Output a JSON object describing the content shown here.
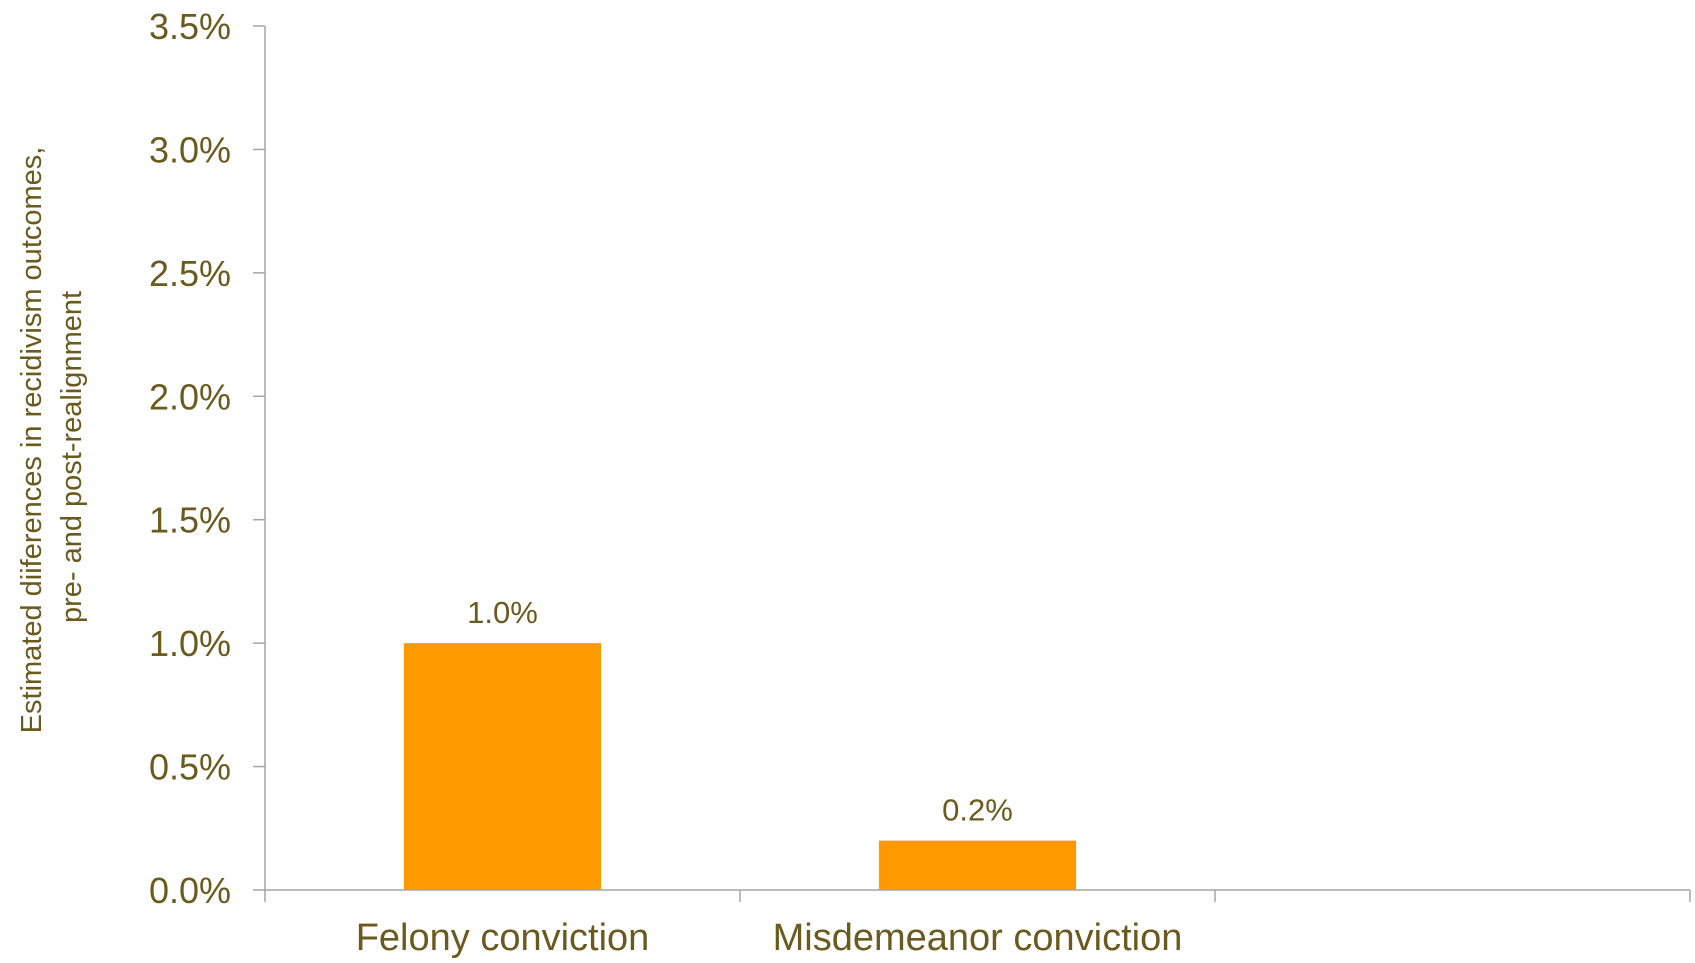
{
  "chart_data": {
    "type": "bar",
    "categories": [
      "Felony conviction",
      "Misdemeanor conviction",
      ""
    ],
    "values": [
      1.0,
      0.2,
      null
    ],
    "data_labels": [
      "1.0%",
      "0.2%",
      ""
    ],
    "ylabel_lines": [
      "Estimated diiferences in recidivism outcomes,",
      "pre- and post-realignment"
    ],
    "ylim": [
      0,
      3.5
    ],
    "yticks": [
      0,
      0.5,
      1.0,
      1.5,
      2.0,
      2.5,
      3.0,
      3.5
    ],
    "ytick_labels": [
      "0.0%",
      "0.5%",
      "1.0%",
      "1.5%",
      "2.0%",
      "2.5%",
      "3.0%",
      "3.5%"
    ],
    "grid": false,
    "legend": "none",
    "colors": {
      "bar": "#FF9900",
      "text": "#6B5A1E",
      "axis": "#A6A6A6"
    }
  }
}
